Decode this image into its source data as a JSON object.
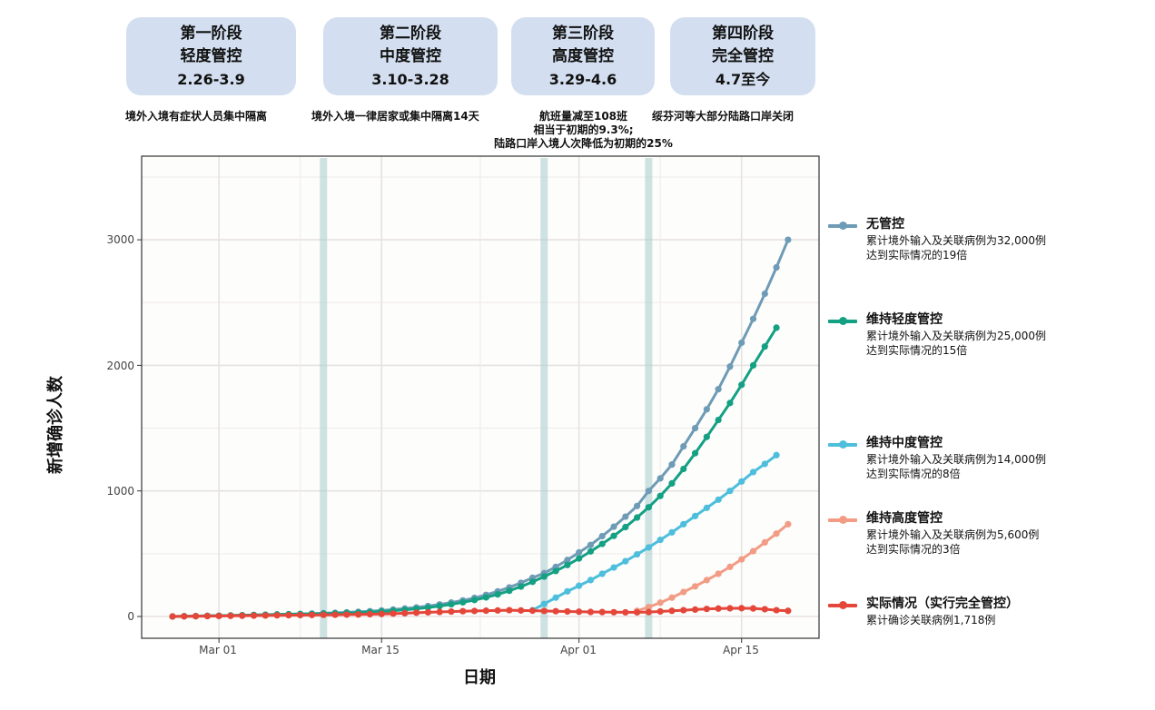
{
  "phases": [
    {
      "name": "第一阶段",
      "level": "轻度管控",
      "dates": "2.26-3.9",
      "note": [
        "境外入境有症状人员集中隔离"
      ]
    },
    {
      "name": "第二阶段",
      "level": "中度管控",
      "dates": "3.10-3.28",
      "note": [
        "境外入境一律居家或集中隔离14天"
      ]
    },
    {
      "name": "第三阶段",
      "level": "高度管控",
      "dates": "3.29-4.6",
      "note": [
        "航班量减至108班",
        "相当于初期的9.3%;",
        "陆路口岸入境人次降低为初期的25%"
      ]
    },
    {
      "name": "第四阶段",
      "level": "完全管控",
      "dates": "4.7至今",
      "note": [
        "绥芬河等大部分陆路口岸关闭"
      ]
    }
  ],
  "legend": [
    {
      "title": "无管控",
      "line1": "累计境外输入及关联病例为32,000例",
      "line2": "达到实际情况的19倍",
      "color": "#6e9bb5"
    },
    {
      "title": "维持轻度管控",
      "line1": "累计境外输入及关联病例为25,000例",
      "line2": "达到实际情况的15倍",
      "color": "#14a083"
    },
    {
      "title": "维持中度管控",
      "line1": "累计境外输入及关联病例为14,000例",
      "line2": "达到实际情况的8倍",
      "color": "#4dbedb"
    },
    {
      "title": "维持高度管控",
      "line1": "累计境外输入及关联病例为5,600例",
      "line2": "达到实际情况的3倍",
      "color": "#f29c85"
    },
    {
      "title": "实际情况（实行完全管控）",
      "line1": "累计确诊关联病例1,718例",
      "line2": "",
      "color": "#e5463a"
    }
  ],
  "axes": {
    "ylabel": "新增确诊人数",
    "xlabel": "日期",
    "yticks": [
      "0",
      "1000",
      "2000",
      "3000"
    ],
    "xticks": [
      "Mar 01",
      "Mar 15",
      "Apr 01",
      "Apr 15"
    ]
  },
  "chart_data": {
    "type": "line",
    "title": "",
    "xlabel": "日期",
    "ylabel": "新增确诊人数",
    "x_start": "2020-02-26",
    "x_end": "2020-04-19",
    "ylim": [
      -160,
      3650
    ],
    "yticks": [
      0,
      1000,
      2000,
      3000
    ],
    "xticks": [
      "Mar 01",
      "Mar 15",
      "Apr 01",
      "Apr 15"
    ],
    "grid": true,
    "legend_position": "right",
    "phase_markers": [
      "2020-03-10",
      "2020-03-29",
      "2020-04-07"
    ],
    "series": [
      {
        "name": "无管控",
        "start": "2020-02-26",
        "color": "#6e9bb5",
        "values": [
          0,
          2,
          3,
          5,
          6,
          8,
          10,
          12,
          14,
          16,
          18,
          20,
          23,
          26,
          29,
          33,
          37,
          42,
          48,
          55,
          63,
          72,
          83,
          96,
          111,
          128,
          148,
          172,
          200,
          232,
          268,
          308,
          345,
          395,
          450,
          510,
          570,
          640,
          715,
          795,
          880,
          1000,
          1100,
          1210,
          1355,
          1500,
          1650,
          1810,
          1990,
          2180,
          2370,
          2570,
          2780,
          3000
        ]
      },
      {
        "name": "维持轻度管控",
        "start": "2020-02-26",
        "color": "#14a083",
        "values": [
          0,
          2,
          3,
          5,
          6,
          8,
          10,
          12,
          14,
          16,
          18,
          20,
          21,
          23,
          25,
          28,
          31,
          35,
          40,
          46,
          53,
          61,
          71,
          83,
          97,
          113,
          131,
          152,
          176,
          205,
          238,
          276,
          318,
          362,
          410,
          462,
          518,
          578,
          642,
          712,
          788,
          870,
          960,
          1060,
          1175,
          1300,
          1430,
          1565,
          1700,
          1845,
          2000,
          2150,
          2300
        ]
      },
      {
        "name": "维持中度管控",
        "start": "2020-03-28",
        "color": "#4dbedb",
        "values": [
          50,
          100,
          150,
          200,
          245,
          290,
          340,
          390,
          440,
          495,
          550,
          610,
          670,
          735,
          800,
          865,
          930,
          1000,
          1075,
          1150,
          1215,
          1285
        ]
      },
      {
        "name": "维持高度管控",
        "start": "2020-04-06",
        "color": "#f29c85",
        "values": [
          45,
          75,
          110,
          150,
          195,
          240,
          290,
          340,
          395,
          455,
          520,
          590,
          660,
          735
        ]
      },
      {
        "name": "实际情况（实行完全管控）",
        "start": "2020-02-26",
        "color": "#e5463a",
        "values": [
          0,
          1,
          2,
          3,
          4,
          5,
          6,
          7,
          8,
          9,
          10,
          11,
          12,
          13,
          14,
          15,
          16,
          18,
          20,
          23,
          26,
          30,
          33,
          36,
          39,
          42,
          44,
          46,
          48,
          50,
          48,
          46,
          44,
          42,
          40,
          38,
          36,
          35,
          34,
          33,
          33,
          35,
          40,
          45,
          50,
          55,
          60,
          63,
          65,
          66,
          64,
          58,
          50,
          45
        ]
      }
    ]
  }
}
